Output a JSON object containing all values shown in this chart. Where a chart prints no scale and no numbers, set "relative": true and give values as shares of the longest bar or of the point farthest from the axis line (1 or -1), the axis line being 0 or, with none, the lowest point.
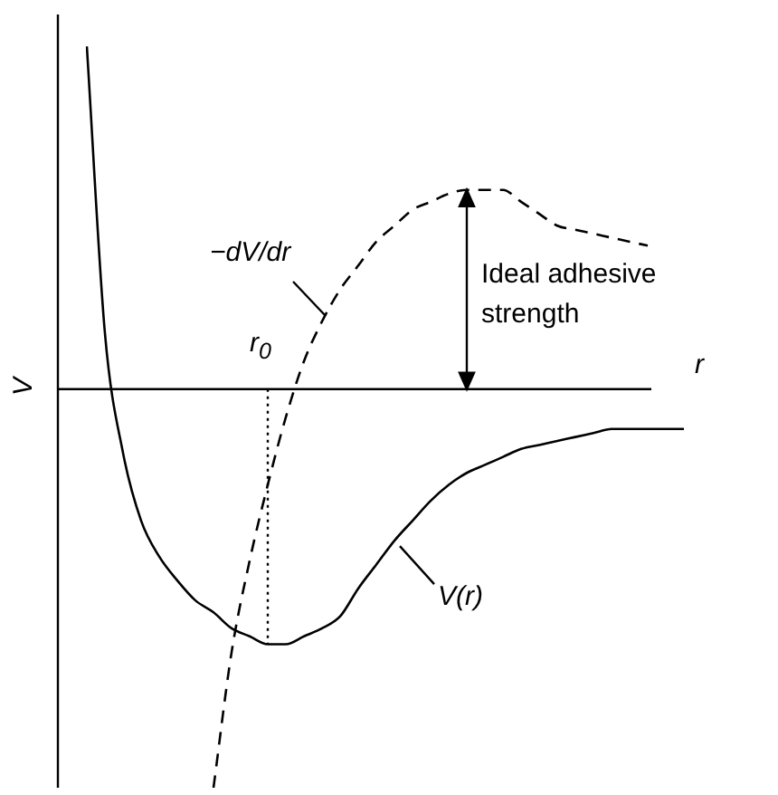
{
  "chart_data": {
    "type": "line",
    "relative": true,
    "xlabel": "r",
    "ylabel": "V",
    "categories": [
      null,
      null,
      null,
      null,
      null,
      null,
      null,
      null,
      null,
      null,
      null,
      null,
      null,
      null,
      null,
      null,
      null,
      null,
      null,
      null,
      null,
      null,
      null,
      null,
      null,
      null,
      null,
      null,
      null,
      null,
      null,
      null,
      null,
      null
    ],
    "series": [
      {
        "name": "V(r)",
        "color": "#000000",
        "line_style": "solid",
        "values": [
          0.86,
          0.14,
          -0.16,
          -0.33,
          -0.42,
          -0.48,
          -0.53,
          -0.56,
          -0.6,
          -0.62,
          -0.64,
          -0.64,
          -0.62,
          -0.6,
          -0.57,
          -0.5,
          -0.44,
          -0.38,
          -0.33,
          -0.28,
          -0.24,
          -0.21,
          -0.19,
          -0.17,
          -0.15,
          -0.14,
          -0.13,
          -0.12,
          -0.11,
          -0.1,
          -0.1,
          -0.1,
          -0.1,
          -0.1
        ]
      },
      {
        "name": "−dV/dr",
        "color": "#000000",
        "line_style": "dashed",
        "values": [
          null,
          null,
          null,
          null,
          null,
          null,
          null,
          -1,
          -0.66,
          -0.43,
          -0.24,
          -0.07,
          0.07,
          0.17,
          0.25,
          0.31,
          0.37,
          0.41,
          0.45,
          0.47,
          0.49,
          0.5,
          0.5,
          0.5,
          0.47,
          0.44,
          0.41,
          0.4,
          0.39,
          0.38,
          0.37,
          0.36,
          null,
          null
        ]
      }
    ],
    "annotations": [
      "Ideal adhesive strength",
      "r$_{0}$"
    ],
    "marker": "none"
  }
}
